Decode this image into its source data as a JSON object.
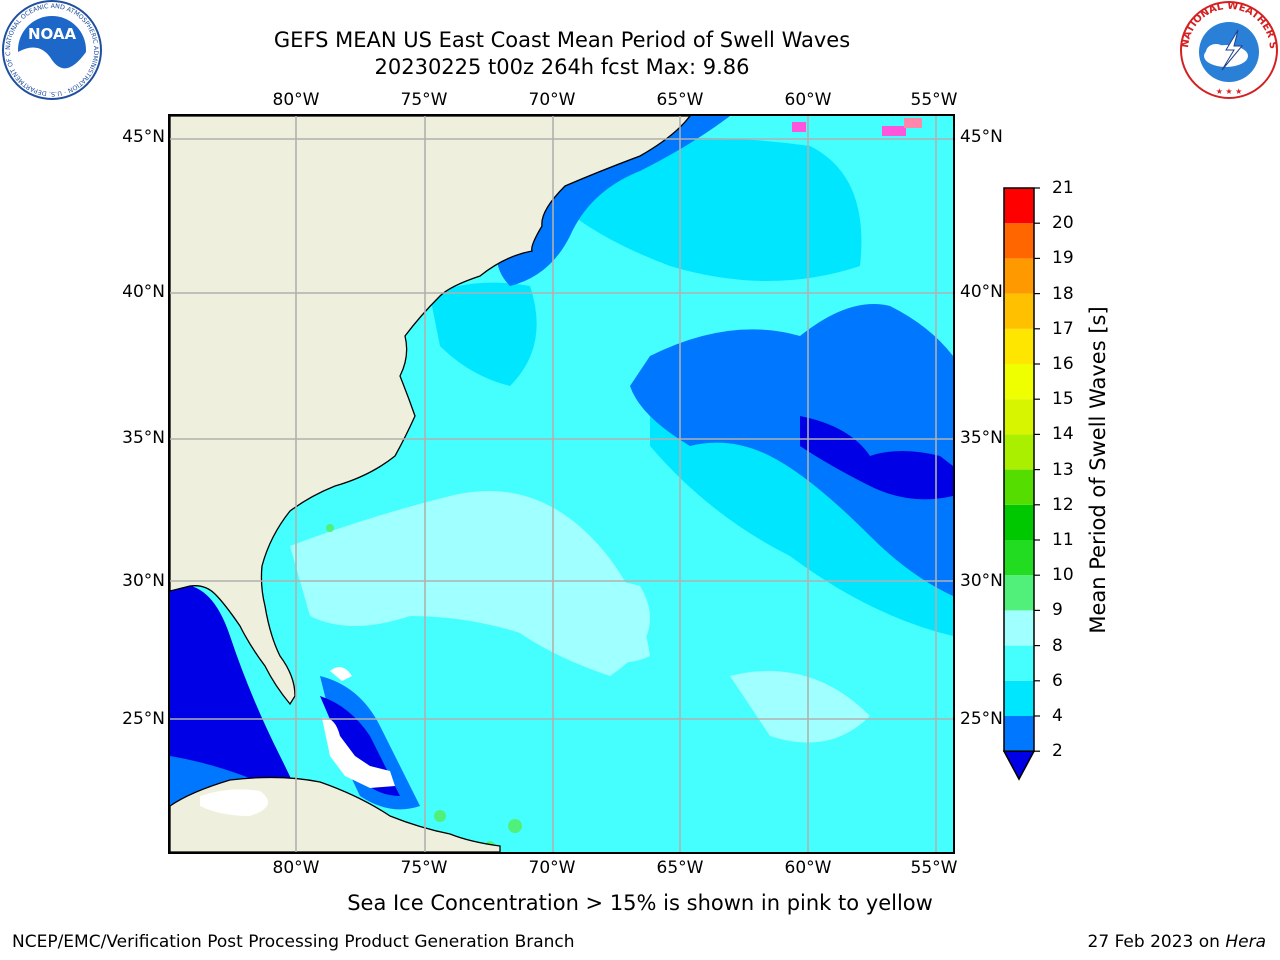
{
  "title": {
    "line1": "GEFS MEAN US East Coast Mean Period of Swell Waves",
    "line2": "20230225 t00z 264h fcst   Max: 9.86"
  },
  "map": {
    "lon_labels": [
      "80°W",
      "75°W",
      "70°W",
      "65°W",
      "60°W",
      "55°W"
    ],
    "lat_labels": [
      "45°N",
      "40°N",
      "35°N",
      "30°N",
      "25°N"
    ],
    "land_color": "#efefdd",
    "gridline_color": "#b0b0b0"
  },
  "colorbar": {
    "title": "Mean Period of Swell Waves [s]",
    "ticks": [
      "2",
      "4",
      "6",
      "8",
      "9",
      "10",
      "11",
      "12",
      "13",
      "14",
      "15",
      "16",
      "17",
      "18",
      "19",
      "20",
      "21"
    ],
    "colors": [
      "#0077ff",
      "#00e6ff",
      "#45ffff",
      "#a0ffff",
      "#50f07a",
      "#22dc22",
      "#00c800",
      "#55dd00",
      "#aaee00",
      "#d8f500",
      "#f0ff00",
      "#ffe600",
      "#ffc000",
      "#ff9900",
      "#ff6600",
      "#ff3300",
      "#ff0000"
    ],
    "underflow_color": "#0000e6"
  },
  "note": "Sea Ice Concentration > 15% is shown in pink to yellow",
  "footer": {
    "left": "NCEP/EMC/Verification Post Processing Product Generation Branch",
    "right_date": "27 Feb 2023 on",
    "right_host": "Hera"
  },
  "logos": {
    "noaa_text": "NOAA",
    "noaa_ring": "NATIONAL OCEANIC AND ATMOSPHERIC ADMINISTRATION · U.S. DEPARTMENT OF COMMERCE",
    "nws_ring": "NATIONAL WEATHER SERVICE"
  }
}
